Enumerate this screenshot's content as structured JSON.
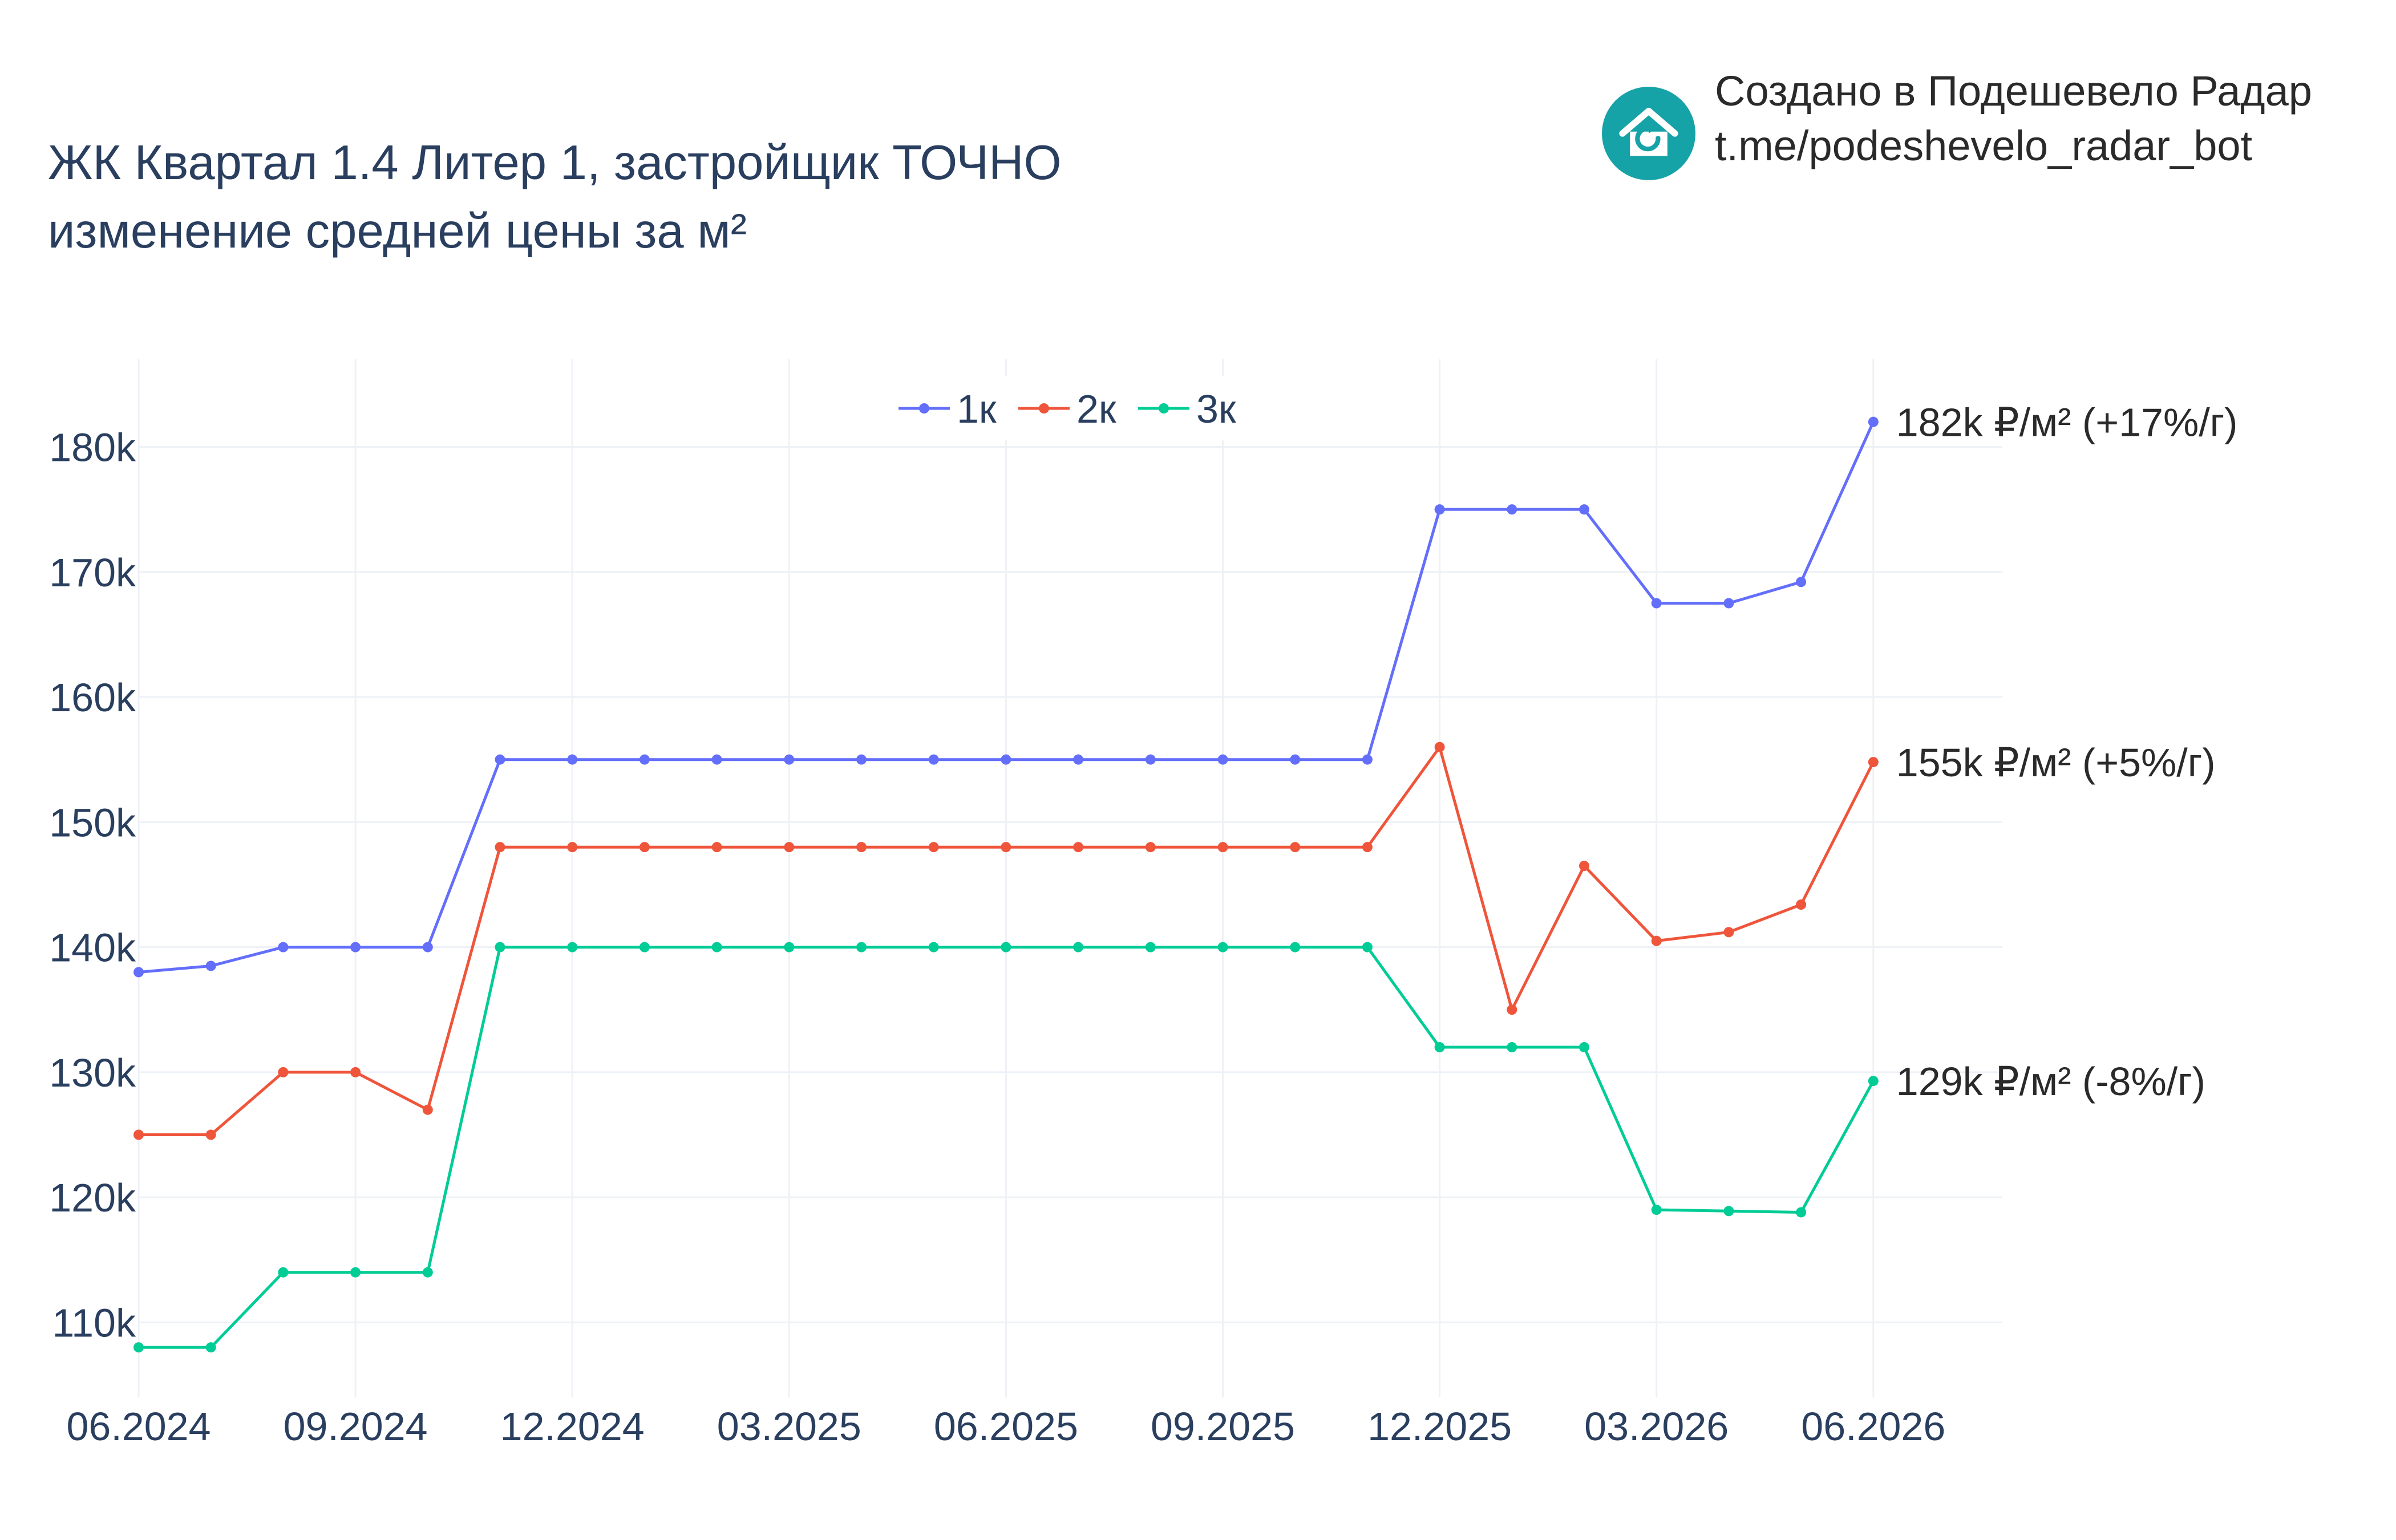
{
  "title": {
    "line1": "ЖК Квартал 1.4 Литер 1, застройщик ТОЧНО",
    "line2": "изменение средней цены за м²"
  },
  "brand": {
    "line1": "Создано в Подешевело Радар",
    "line2": "t.me/podeshevelo_radar_bot",
    "logo_icon": "house-refresh-icon",
    "logo_color": "#16a3a7"
  },
  "chart_data": {
    "type": "line",
    "x": [
      "2024-06",
      "2024-07",
      "2024-08",
      "2024-09",
      "2024-10",
      "2024-11",
      "2024-12",
      "2025-01",
      "2025-02",
      "2025-03",
      "2025-04",
      "2025-05",
      "2025-06",
      "2025-07",
      "2025-08",
      "2025-09",
      "2025-10",
      "2025-11",
      "2025-12",
      "2026-01",
      "2026-02",
      "2026-03",
      "2026-04",
      "2026-05",
      "2026-06"
    ],
    "x_ticks": [
      "06.2024",
      "09.2024",
      "12.2024",
      "03.2025",
      "06.2025",
      "09.2025",
      "12.2025",
      "03.2026",
      "06.2026"
    ],
    "y_ticks": [
      "110k",
      "120k",
      "130k",
      "140k",
      "150k",
      "160k",
      "170k",
      "180k"
    ],
    "ylim": [
      104000,
      187000
    ],
    "grid": true,
    "legend_position": "top-center",
    "series": [
      {
        "name": "1к",
        "color": "#636efa",
        "values": [
          138000,
          138500,
          140000,
          140000,
          140000,
          155000,
          155000,
          155000,
          155000,
          155000,
          155000,
          155000,
          155000,
          155000,
          155000,
          155000,
          155000,
          155000,
          175000,
          175000,
          175000,
          167500,
          167500,
          169200,
          182000
        ],
        "end_label": "182k ₽/м² (+17%/г)"
      },
      {
        "name": "2к",
        "color": "#ef553b",
        "values": [
          125000,
          125000,
          130000,
          130000,
          127000,
          148000,
          148000,
          148000,
          148000,
          148000,
          148000,
          148000,
          148000,
          148000,
          148000,
          148000,
          148000,
          148000,
          156000,
          135000,
          146500,
          140500,
          141200,
          143400,
          154800
        ],
        "end_label": "155k ₽/м² (+5%/г)"
      },
      {
        "name": "3к",
        "color": "#00cc96",
        "values": [
          108000,
          108000,
          114000,
          114000,
          114000,
          140000,
          140000,
          140000,
          140000,
          140000,
          140000,
          140000,
          140000,
          140000,
          140000,
          140000,
          140000,
          140000,
          132000,
          132000,
          132000,
          119000,
          118900,
          118800,
          129300
        ],
        "end_label": "129k ₽/м² (-8%/г)"
      }
    ]
  }
}
